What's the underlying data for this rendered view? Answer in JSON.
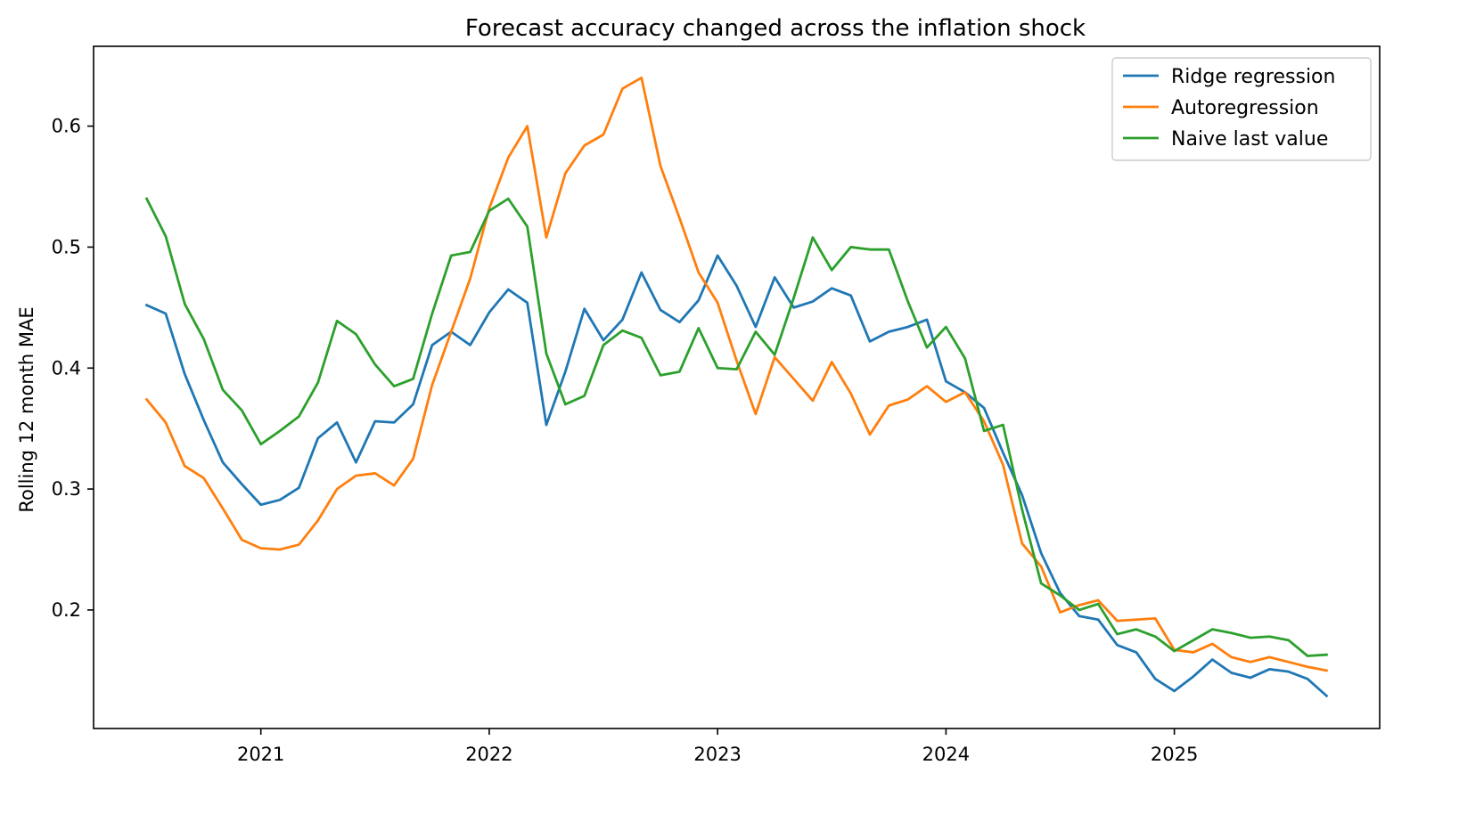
{
  "chart_data": {
    "type": "line",
    "title": "Forecast accuracy changed across the inflation shock",
    "xlabel": "",
    "ylabel": "Rolling 12 month MAE",
    "x_start": "2020-07",
    "x_frequency": "monthly",
    "x_tick_labels": [
      "2021",
      "2022",
      "2023",
      "2024",
      "2025"
    ],
    "y_ticks": [
      0.2,
      0.3,
      0.4,
      0.5,
      0.6
    ],
    "ylim": [
      0.102,
      0.666
    ],
    "grid": false,
    "legend_position": "top-right",
    "series": [
      {
        "name": "Ridge regression",
        "color": "#1f77b4",
        "values": [
          0.452,
          0.445,
          0.395,
          0.357,
          0.322,
          0.304,
          0.287,
          0.291,
          0.301,
          0.342,
          0.355,
          0.322,
          0.356,
          0.355,
          0.37,
          0.419,
          0.43,
          0.419,
          0.446,
          0.465,
          0.454,
          0.353,
          0.397,
          0.449,
          0.423,
          0.44,
          0.479,
          0.448,
          0.438,
          0.456,
          0.493,
          0.468,
          0.434,
          0.475,
          0.45,
          0.455,
          0.466,
          0.46,
          0.422,
          0.43,
          0.434,
          0.44,
          0.389,
          0.38,
          0.367,
          0.33,
          0.295,
          0.247,
          0.214,
          0.195,
          0.192,
          0.171,
          0.165,
          0.143,
          0.133,
          0.145,
          0.159,
          0.148,
          0.144,
          0.151,
          0.149,
          0.143,
          0.129
        ]
      },
      {
        "name": "Autoregression",
        "color": "#ff7f0e",
        "values": [
          0.374,
          0.355,
          0.319,
          0.309,
          0.284,
          0.258,
          0.251,
          0.25,
          0.254,
          0.274,
          0.3,
          0.311,
          0.313,
          0.303,
          0.325,
          0.386,
          0.43,
          0.474,
          0.532,
          0.574,
          0.6,
          0.508,
          0.561,
          0.584,
          0.593,
          0.631,
          0.64,
          0.567,
          0.524,
          0.479,
          0.454,
          0.406,
          0.362,
          0.409,
          0.391,
          0.373,
          0.405,
          0.379,
          0.345,
          0.369,
          0.374,
          0.385,
          0.372,
          0.38,
          0.356,
          0.32,
          0.255,
          0.236,
          0.198,
          0.204,
          0.208,
          0.191,
          0.192,
          0.193,
          0.167,
          0.165,
          0.172,
          0.161,
          0.157,
          0.161,
          0.157,
          0.153,
          0.15
        ]
      },
      {
        "name": "Naive last value",
        "color": "#2ca02c",
        "values": [
          0.54,
          0.509,
          0.453,
          0.424,
          0.382,
          0.365,
          0.337,
          0.348,
          0.36,
          0.388,
          0.439,
          0.428,
          0.403,
          0.385,
          0.391,
          0.445,
          0.493,
          0.496,
          0.53,
          0.54,
          0.517,
          0.412,
          0.37,
          0.377,
          0.419,
          0.431,
          0.425,
          0.394,
          0.397,
          0.433,
          0.4,
          0.399,
          0.43,
          0.411,
          0.458,
          0.508,
          0.481,
          0.5,
          0.498,
          0.498,
          0.455,
          0.417,
          0.434,
          0.408,
          0.348,
          0.353,
          0.283,
          0.222,
          0.212,
          0.2,
          0.205,
          0.18,
          0.184,
          0.178,
          0.166,
          0.175,
          0.184,
          0.181,
          0.177,
          0.178,
          0.175,
          0.162,
          0.163
        ]
      }
    ]
  }
}
